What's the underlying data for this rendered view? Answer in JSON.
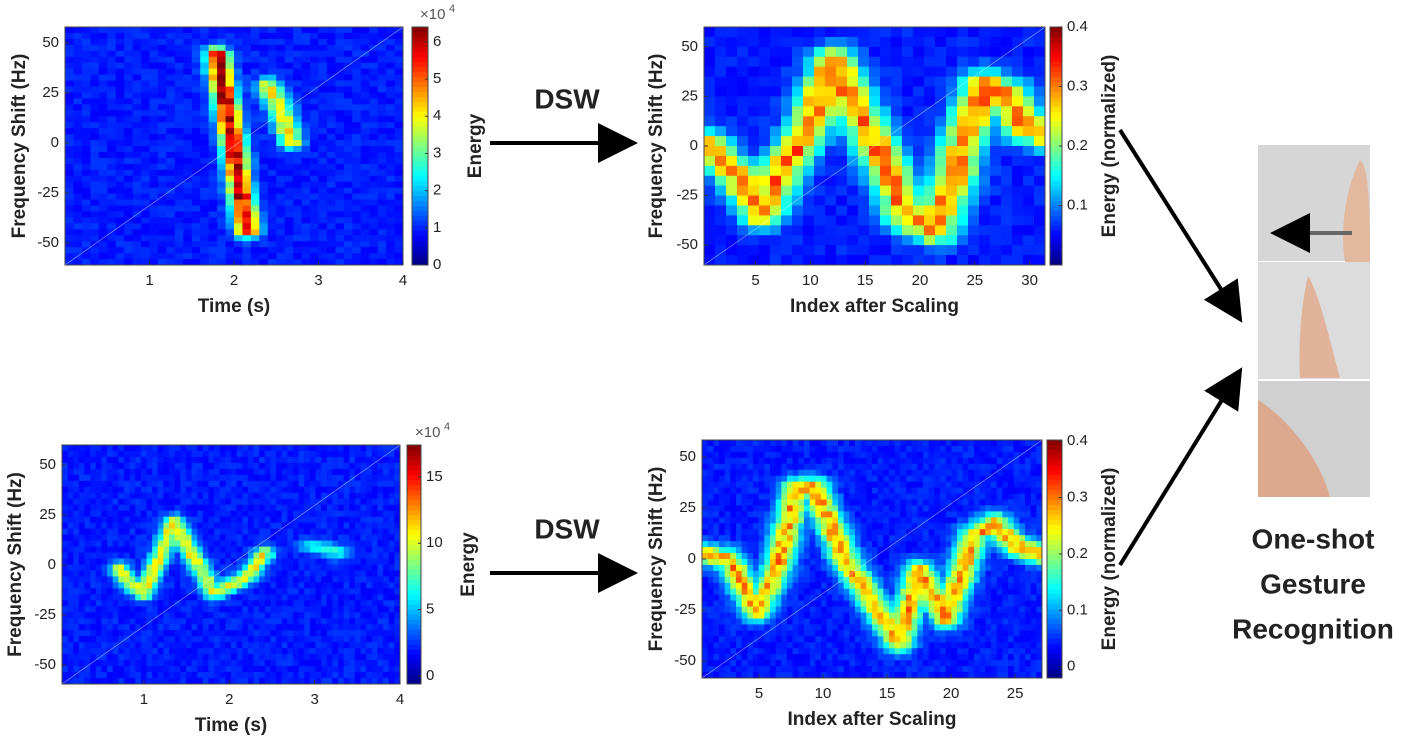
{
  "panels": [
    {
      "ylabel": "Frequency Shift (Hz)",
      "xlabel": "Time (s)",
      "colorbar_label": "Energy",
      "colorbar_multiplier": "×10",
      "colorbar_exponent": "4",
      "xlim": [
        0,
        4
      ],
      "ylim": [
        -61,
        58
      ],
      "xticks": [
        1,
        2,
        3,
        4
      ],
      "yticks": [
        50,
        25,
        0,
        -25,
        -50
      ],
      "cblim": [
        0,
        6.4
      ],
      "cbticks": [
        0,
        1,
        2,
        3,
        4,
        5,
        6
      ]
    },
    {
      "ylabel": "Frequency Shift (Hz)",
      "xlabel": "Index after Scaling",
      "colorbar_label": "Energy (normalized)",
      "xlim": [
        0.3,
        31.4
      ],
      "ylim": [
        -60,
        60
      ],
      "xticks": [
        5,
        10,
        15,
        20,
        25,
        30
      ],
      "yticks": [
        50,
        25,
        0,
        -25,
        -50
      ],
      "cblim": [
        0,
        0.4
      ],
      "cbticks": [
        0.1,
        0.2,
        0.3,
        0.4
      ]
    },
    {
      "ylabel": "Frequency Shift (Hz)",
      "xlabel": "Time (s)",
      "colorbar_label": "Energy",
      "colorbar_multiplier": "×10",
      "colorbar_exponent": "4",
      "xlim": [
        0.04,
        4
      ],
      "ylim": [
        -59.5,
        60
      ],
      "xticks": [
        1,
        2,
        3,
        4
      ],
      "yticks": [
        50,
        25,
        0,
        -25,
        -50
      ],
      "cblim": [
        -0.6,
        17.4
      ],
      "cbticks": [
        0,
        5,
        10,
        15
      ]
    },
    {
      "ylabel": "Frequency Shift (Hz)",
      "xlabel": "Index after Scaling",
      "colorbar_label": "Energy (normalized)",
      "xlim": [
        0.55,
        27.1
      ],
      "ylim": [
        -58.3,
        58.3
      ],
      "xticks": [
        5,
        10,
        15,
        20,
        25
      ],
      "yticks": [
        50,
        25,
        0,
        -25,
        -50
      ],
      "cblim": [
        -0.02,
        0.402
      ],
      "cbticks": [
        0,
        0.1,
        0.2,
        0.3,
        0.4
      ]
    }
  ],
  "arrows": [
    {
      "label": "DSW"
    },
    {
      "label": "DSW"
    }
  ],
  "result": {
    "lines": [
      "One-shot",
      "Gesture",
      "Recognition"
    ]
  }
}
